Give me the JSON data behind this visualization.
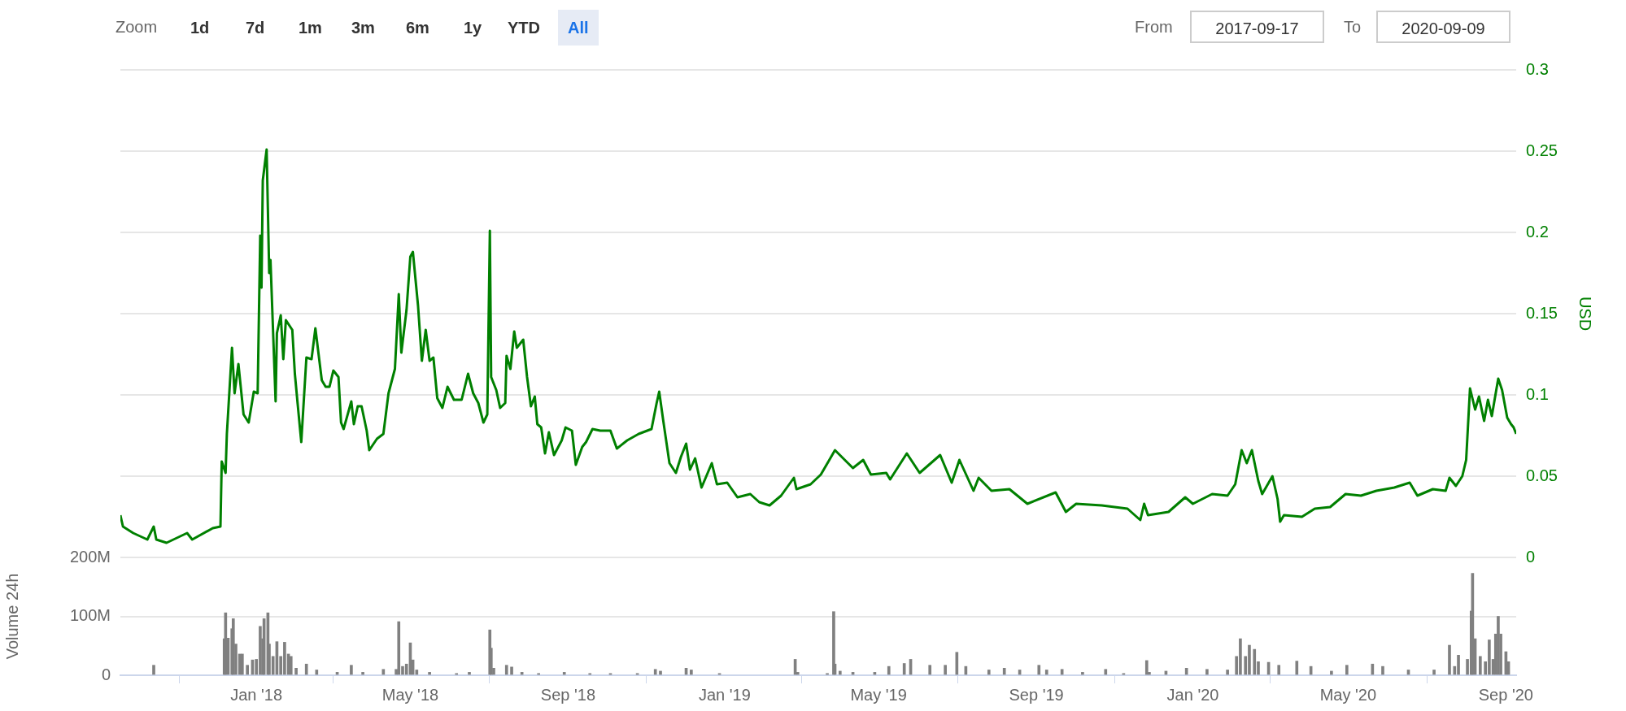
{
  "chart_data": [
    {
      "type": "line",
      "ylabel": "USD",
      "annotations": [
        "Zoom",
        "1d",
        "7d",
        "1m",
        "3m",
        "6m",
        "1y",
        "YTD",
        "All",
        "From",
        "2017-09-17",
        "To",
        "2020-09-09"
      ],
      "xlim": [
        "2017-09-17",
        "2020-09-09"
      ],
      "ylim": [
        0,
        0.3
      ],
      "yticks": [
        0,
        0.05,
        0.1,
        0.15,
        0.2,
        0.25,
        0.3
      ],
      "grid": "y",
      "tick_labels": "y",
      "series": [
        {
          "color": "#008000",
          "x": [
            "2017-09-17",
            "2017-09-19",
            "2017-09-27",
            "2017-10-08",
            "2017-10-13",
            "2017-10-15",
            "2017-10-23",
            "2017-11-08",
            "2017-11-12",
            "2017-11-28",
            "2017-12-04",
            "2017-12-05",
            "2017-12-08",
            "2017-12-09",
            "2017-12-13",
            "2017-12-15",
            "2017-12-18",
            "2017-12-22",
            "2017-12-26",
            "2017-12-30",
            "2018-01-02",
            "2018-01-04",
            "2018-01-05",
            "2018-01-06",
            "2018-01-09",
            "2018-01-11",
            "2018-01-12",
            "2018-01-16",
            "2018-01-17",
            "2018-01-20",
            "2018-01-22",
            "2018-01-24",
            "2018-01-29",
            "2018-01-31",
            "2018-02-02",
            "2018-02-05",
            "2018-02-09",
            "2018-02-13",
            "2018-02-16",
            "2018-02-21",
            "2018-02-24",
            "2018-02-27",
            "2018-03-02",
            "2018-03-06",
            "2018-03-08",
            "2018-03-10",
            "2018-03-16",
            "2018-03-18",
            "2018-03-21",
            "2018-03-24",
            "2018-03-28",
            "2018-03-30",
            "2018-04-05",
            "2018-04-10",
            "2018-04-14",
            "2018-04-19",
            "2018-04-22",
            "2018-04-24",
            "2018-04-28",
            "2018-05-01",
            "2018-05-03",
            "2018-05-07",
            "2018-05-10",
            "2018-05-13",
            "2018-05-16",
            "2018-05-19",
            "2018-05-22",
            "2018-05-26",
            "2018-05-30",
            "2018-06-04",
            "2018-06-10",
            "2018-06-15",
            "2018-06-19",
            "2018-06-23",
            "2018-06-27",
            "2018-06-30",
            "2018-07-02",
            "2018-07-03",
            "2018-07-07",
            "2018-07-10",
            "2018-07-14",
            "2018-07-15",
            "2018-07-18",
            "2018-07-21",
            "2018-07-23",
            "2018-07-28",
            "2018-07-31",
            "2018-08-03",
            "2018-08-06",
            "2018-08-08",
            "2018-08-11",
            "2018-08-14",
            "2018-08-17",
            "2018-08-21",
            "2018-08-27",
            "2018-08-30",
            "2018-09-04",
            "2018-09-07",
            "2018-09-12",
            "2018-09-15",
            "2018-09-20",
            "2018-09-26",
            "2018-10-04",
            "2018-10-09",
            "2018-10-17",
            "2018-10-26",
            "2018-11-05",
            "2018-11-09",
            "2018-11-11",
            "2018-11-14",
            "2018-11-19",
            "2018-11-24",
            "2018-11-28",
            "2018-12-02",
            "2018-12-05",
            "2018-12-09",
            "2018-12-14",
            "2018-12-22",
            "2018-12-26",
            "2019-01-03",
            "2019-01-11",
            "2019-01-21",
            "2019-01-28",
            "2019-02-05",
            "2019-02-14",
            "2019-02-24",
            "2019-02-26",
            "2019-03-09",
            "2019-03-17",
            "2019-03-28",
            "2019-04-11",
            "2019-04-19",
            "2019-04-25",
            "2019-05-07",
            "2019-05-10",
            "2019-05-23",
            "2019-06-02",
            "2019-06-18",
            "2019-06-27",
            "2019-07-03",
            "2019-07-14",
            "2019-07-18",
            "2019-07-28",
            "2019-08-11",
            "2019-08-25",
            "2019-09-16",
            "2019-09-24",
            "2019-10-02",
            "2019-10-22",
            "2019-11-11",
            "2019-11-21",
            "2019-11-24",
            "2019-11-27",
            "2019-12-13",
            "2019-12-26",
            "2020-01-01",
            "2020-01-16",
            "2020-01-28",
            "2020-02-03",
            "2020-02-08",
            "2020-02-12",
            "2020-02-16",
            "2020-02-21",
            "2020-02-24",
            "2020-03-03",
            "2020-03-07",
            "2020-03-09",
            "2020-03-12",
            "2020-03-26",
            "2020-04-05",
            "2020-04-17",
            "2020-04-29",
            "2020-05-11",
            "2020-05-23",
            "2020-06-06",
            "2020-06-18",
            "2020-06-24",
            "2020-07-06",
            "2020-07-16",
            "2020-07-19",
            "2020-07-24",
            "2020-07-29",
            "2020-08-01",
            "2020-08-04",
            "2020-08-08",
            "2020-08-11",
            "2020-08-15",
            "2020-08-18",
            "2020-08-21",
            "2020-08-26",
            "2020-08-29",
            "2020-09-02",
            "2020-09-05",
            "2020-09-07",
            "2020-09-09"
          ],
          "values": [
            0.026,
            0.019,
            0.015,
            0.011,
            0.019,
            0.011,
            0.009,
            0.015,
            0.011,
            0.018,
            0.019,
            0.059,
            0.052,
            0.076,
            0.129,
            0.101,
            0.119,
            0.088,
            0.083,
            0.102,
            0.101,
            0.198,
            0.166,
            0.232,
            0.251,
            0.175,
            0.183,
            0.096,
            0.138,
            0.149,
            0.122,
            0.146,
            0.14,
            0.113,
            0.096,
            0.071,
            0.123,
            0.122,
            0.141,
            0.109,
            0.105,
            0.105,
            0.115,
            0.111,
            0.083,
            0.079,
            0.096,
            0.082,
            0.093,
            0.093,
            0.078,
            0.066,
            0.073,
            0.076,
            0.101,
            0.116,
            0.162,
            0.126,
            0.152,
            0.185,
            0.188,
            0.155,
            0.121,
            0.14,
            0.121,
            0.123,
            0.098,
            0.092,
            0.105,
            0.097,
            0.097,
            0.113,
            0.101,
            0.095,
            0.083,
            0.088,
            0.201,
            0.111,
            0.103,
            0.092,
            0.095,
            0.124,
            0.116,
            0.139,
            0.129,
            0.134,
            0.111,
            0.093,
            0.099,
            0.082,
            0.08,
            0.064,
            0.077,
            0.063,
            0.072,
            0.08,
            0.078,
            0.057,
            0.068,
            0.071,
            0.079,
            0.078,
            0.078,
            0.067,
            0.072,
            0.076,
            0.079,
            0.095,
            0.102,
            0.085,
            0.058,
            0.052,
            0.062,
            0.07,
            0.054,
            0.061,
            0.043,
            0.058,
            0.045,
            0.046,
            0.037,
            0.039,
            0.034,
            0.032,
            0.038,
            0.049,
            0.042,
            0.045,
            0.051,
            0.066,
            0.055,
            0.06,
            0.051,
            0.052,
            0.048,
            0.064,
            0.052,
            0.063,
            0.046,
            0.06,
            0.041,
            0.049,
            0.041,
            0.042,
            0.033,
            0.04,
            0.028,
            0.033,
            0.032,
            0.03,
            0.023,
            0.033,
            0.026,
            0.028,
            0.037,
            0.033,
            0.039,
            0.038,
            0.045,
            0.066,
            0.058,
            0.066,
            0.047,
            0.039,
            0.05,
            0.036,
            0.022,
            0.026,
            0.025,
            0.03,
            0.031,
            0.039,
            0.038,
            0.041,
            0.043,
            0.046,
            0.038,
            0.042,
            0.041,
            0.049,
            0.044,
            0.05,
            0.06,
            0.104,
            0.091,
            0.099,
            0.084,
            0.097,
            0.087,
            0.11,
            0.103,
            0.086,
            0.082,
            0.08,
            0.076
          ]
        }
      ]
    },
    {
      "type": "bar",
      "ylabel": "Volume 24h",
      "xlim": [
        "2017-09-17",
        "2020-09-09"
      ],
      "xticks": [
        {
          "value": "2018-01-01",
          "label": "Jan '18"
        },
        {
          "value": "2018-05-01",
          "label": "May '18"
        },
        {
          "value": "2018-09-01",
          "label": "Sep '18"
        },
        {
          "value": "2019-01-01",
          "label": "Jan '19"
        },
        {
          "value": "2019-05-01",
          "label": "May '19"
        },
        {
          "value": "2019-09-01",
          "label": "Sep '19"
        },
        {
          "value": "2020-01-01",
          "label": "Jan '20"
        },
        {
          "value": "2020-05-01",
          "label": "May '20"
        },
        {
          "value": "2020-09-01",
          "label": "Sep '20"
        }
      ],
      "ylim": [
        0,
        200000000
      ],
      "yticks": [
        0,
        {
          "value": 100000000,
          "label": "100M"
        },
        {
          "value": 200000000,
          "label": "200M"
        }
      ],
      "grid": "y",
      "series": [
        {
          "color": "#808080",
          "x": [
            "2017-10-13",
            "2017-12-07",
            "2017-12-08",
            "2017-12-10",
            "2017-12-13",
            "2017-12-14",
            "2017-12-16",
            "2017-12-19",
            "2017-12-21",
            "2017-12-25",
            "2017-12-29",
            "2018-01-01",
            "2018-01-04",
            "2018-01-06",
            "2018-01-07",
            "2018-01-10",
            "2018-01-11",
            "2018-01-14",
            "2018-01-17",
            "2018-01-20",
            "2018-01-23",
            "2018-01-26",
            "2018-01-28",
            "2018-02-01",
            "2018-02-09",
            "2018-02-17",
            "2018-03-05",
            "2018-03-16",
            "2018-03-25",
            "2018-04-10",
            "2018-04-20",
            "2018-04-22",
            "2018-04-25",
            "2018-04-28",
            "2018-05-01",
            "2018-05-03",
            "2018-05-06",
            "2018-05-16",
            "2018-06-06",
            "2018-06-16",
            "2018-07-02",
            "2018-07-03",
            "2018-07-05",
            "2018-07-15",
            "2018-07-19",
            "2018-07-27",
            "2018-08-09",
            "2018-08-29",
            "2018-09-18",
            "2018-10-04",
            "2018-10-25",
            "2018-11-08",
            "2018-11-12",
            "2018-12-02",
            "2018-12-06",
            "2018-12-28",
            "2019-02-25",
            "2019-02-27",
            "2019-03-22",
            "2019-03-27",
            "2019-03-28",
            "2019-04-01",
            "2019-04-11",
            "2019-04-28",
            "2019-05-09",
            "2019-05-21",
            "2019-05-26",
            "2019-06-10",
            "2019-06-22",
            "2019-07-01",
            "2019-07-08",
            "2019-07-26",
            "2019-08-07",
            "2019-08-19",
            "2019-09-03",
            "2019-09-09",
            "2019-09-21",
            "2019-10-07",
            "2019-10-25",
            "2019-11-08",
            "2019-11-26",
            "2019-11-28",
            "2019-12-11",
            "2019-12-27",
            "2020-01-12",
            "2020-01-28",
            "2020-02-04",
            "2020-02-07",
            "2020-02-11",
            "2020-02-14",
            "2020-02-18",
            "2020-02-21",
            "2020-02-29",
            "2020-03-08",
            "2020-03-22",
            "2020-04-02",
            "2020-04-18",
            "2020-04-30",
            "2020-05-20",
            "2020-05-28",
            "2020-06-17",
            "2020-07-07",
            "2020-07-19",
            "2020-07-23",
            "2020-07-26",
            "2020-08-02",
            "2020-08-05",
            "2020-08-06",
            "2020-08-08",
            "2020-08-12",
            "2020-08-16",
            "2020-08-19",
            "2020-08-22",
            "2020-08-24",
            "2020-08-26",
            "2020-08-28",
            "2020-09-01",
            "2020-09-03"
          ],
          "values": [
            17000000,
            62000000,
            106000000,
            63000000,
            79000000,
            96000000,
            53000000,
            36000000,
            36000000,
            17000000,
            26000000,
            27000000,
            83000000,
            62000000,
            96000000,
            106000000,
            53000000,
            32000000,
            57000000,
            32000000,
            56000000,
            36000000,
            32000000,
            12000000,
            19000000,
            9000000,
            5000000,
            17000000,
            5000000,
            10000000,
            10000000,
            91000000,
            15000000,
            19000000,
            55000000,
            26000000,
            9000000,
            5000000,
            3000000,
            5000000,
            77000000,
            46000000,
            12000000,
            17000000,
            14000000,
            5000000,
            3000000,
            5000000,
            3000000,
            3000000,
            3000000,
            10000000,
            7000000,
            12000000,
            9000000,
            3000000,
            27000000,
            5000000,
            3000000,
            108000000,
            19000000,
            7000000,
            5000000,
            5000000,
            15000000,
            20000000,
            27000000,
            17000000,
            17000000,
            39000000,
            15000000,
            9000000,
            12000000,
            9000000,
            17000000,
            9000000,
            10000000,
            5000000,
            10000000,
            3000000,
            25000000,
            5000000,
            7000000,
            12000000,
            10000000,
            9000000,
            32000000,
            62000000,
            32000000,
            51000000,
            44000000,
            23000000,
            22000000,
            17000000,
            24000000,
            15000000,
            7000000,
            17000000,
            19000000,
            15000000,
            9000000,
            9000000,
            51000000,
            15000000,
            34000000,
            27000000,
            109000000,
            173000000,
            62000000,
            32000000,
            23000000,
            60000000,
            27000000,
            70000000,
            100000000,
            70000000,
            40000000,
            23000000
          ]
        }
      ]
    }
  ]
}
